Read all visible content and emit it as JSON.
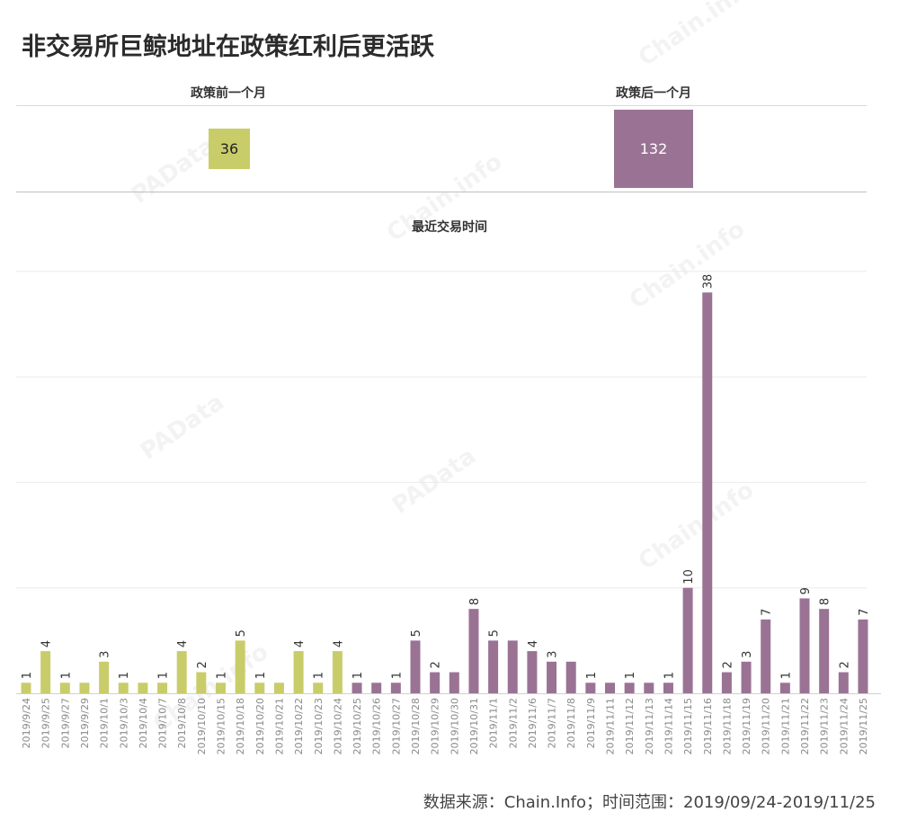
{
  "title": "非交易所巨鲸地址在政策红利后更活跃",
  "summary": {
    "before": {
      "label": "政策前一个月",
      "value": 36,
      "color": "#c8cd6a"
    },
    "after": {
      "label": "政策后一个月",
      "value": 132,
      "color": "#9a7394"
    }
  },
  "source": "数据来源：Chain.Info；时间范围：2019/09/24-2019/11/25",
  "watermarks": [
    "PAData",
    "Chain.info"
  ],
  "colors": {
    "before": "#c8cd6a",
    "after": "#9a7394",
    "grid": "#ebebeb"
  },
  "chart_data": {
    "type": "bar",
    "title": "最近交易时间",
    "xlabel": "",
    "ylabel": "",
    "ylim": [
      0,
      40
    ],
    "grid": true,
    "categories": [
      "2019/9/24",
      "2019/9/25",
      "2019/9/27",
      "2019/9/29",
      "2019/10/1",
      "2019/10/3",
      "2019/10/4",
      "2019/10/7",
      "2019/10/8",
      "2019/10/10",
      "2019/10/15",
      "2019/10/18",
      "2019/10/20",
      "2019/10/21",
      "2019/10/22",
      "2019/10/23",
      "2019/10/24",
      "2019/10/25",
      "2019/10/26",
      "2019/10/27",
      "2019/10/28",
      "2019/10/29",
      "2019/10/30",
      "2019/10/31",
      "2019/11/1",
      "2019/11/2",
      "2019/11/6",
      "2019/11/7",
      "2019/11/8",
      "2019/11/9",
      "2019/11/11",
      "2019/11/12",
      "2019/11/13",
      "2019/11/14",
      "2019/11/15",
      "2019/11/16",
      "2019/11/18",
      "2019/11/19",
      "2019/11/20",
      "2019/11/21",
      "2019/11/22",
      "2019/11/23",
      "2019/11/24",
      "2019/11/25"
    ],
    "values": [
      1,
      4,
      1,
      1,
      3,
      1,
      1,
      1,
      4,
      2,
      1,
      5,
      1,
      1,
      4,
      1,
      4,
      1,
      1,
      1,
      5,
      2,
      2,
      8,
      5,
      5,
      4,
      3,
      3,
      1,
      1,
      1,
      1,
      1,
      10,
      38,
      2,
      3,
      7,
      1,
      9,
      8,
      2,
      7
    ],
    "data_labels": [
      "1",
      "4",
      "1",
      "",
      "3",
      "1",
      "",
      "1",
      "4",
      "2",
      "1",
      "5",
      "1",
      "",
      "4",
      "1",
      "4",
      "1",
      "",
      "1",
      "5",
      "2",
      "",
      "8",
      "5",
      "",
      "4",
      "3",
      "",
      "1",
      "",
      "1",
      "",
      "1",
      "10",
      "38",
      "2",
      "3",
      "7",
      "1",
      "9",
      "8",
      "2",
      "7"
    ],
    "groups": [
      "before",
      "before",
      "before",
      "before",
      "before",
      "before",
      "before",
      "before",
      "before",
      "before",
      "before",
      "before",
      "before",
      "before",
      "before",
      "before",
      "before",
      "after",
      "after",
      "after",
      "after",
      "after",
      "after",
      "after",
      "after",
      "after",
      "after",
      "after",
      "after",
      "after",
      "after",
      "after",
      "after",
      "after",
      "after",
      "after",
      "after",
      "after",
      "after",
      "after",
      "after",
      "after",
      "after",
      "after"
    ]
  }
}
